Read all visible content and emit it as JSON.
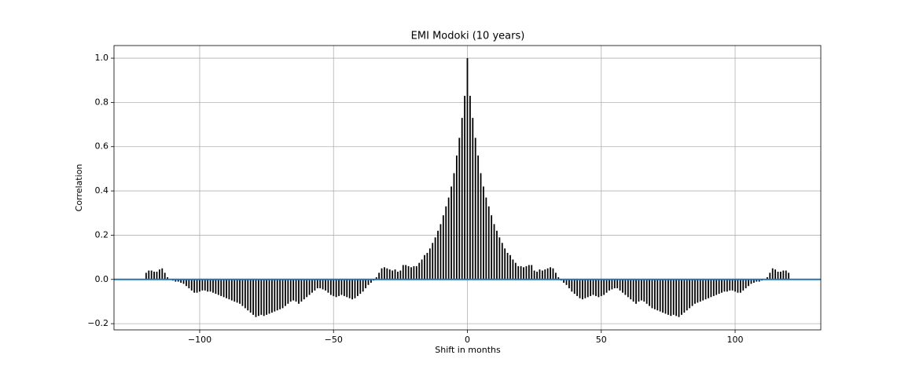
{
  "chart_data": {
    "type": "stem",
    "title": "EMI Modoki (10 years)",
    "x_label": "Shift in months",
    "y_label": "Correlation",
    "color": "#000000",
    "baseline_color": "#1f77b4",
    "grid": true,
    "xlim": [
      -132,
      132
    ],
    "ylim": [
      -0.228,
      1.057
    ],
    "xticks": [
      {
        "value": -100,
        "label": "−100"
      },
      {
        "value": -50,
        "label": "−50"
      },
      0,
      50,
      100
    ],
    "yticks": [
      {
        "value": -0.2,
        "label": "−0.2"
      },
      {
        "value": 0,
        "label": "0.0"
      },
      0.2,
      0.4,
      0.6,
      0.8,
      {
        "value": 1.0,
        "label": "1.0"
      }
    ],
    "x": [
      -120,
      -119,
      -118,
      -117,
      -116,
      -115,
      -114,
      -113,
      -112,
      -111,
      -110,
      -109,
      -108,
      -107,
      -106,
      -105,
      -104,
      -103,
      -102,
      -101,
      -100,
      -99,
      -98,
      -97,
      -96,
      -95,
      -94,
      -93,
      -92,
      -91,
      -90,
      -89,
      -88,
      -87,
      -86,
      -85,
      -84,
      -83,
      -82,
      -81,
      -80,
      -79,
      -78,
      -77,
      -76,
      -75,
      -74,
      -73,
      -72,
      -71,
      -70,
      -69,
      -68,
      -67,
      -66,
      -65,
      -64,
      -63,
      -62,
      -61,
      -60,
      -59,
      -58,
      -57,
      -56,
      -55,
      -54,
      -53,
      -52,
      -51,
      -50,
      -49,
      -48,
      -47,
      -46,
      -45,
      -44,
      -43,
      -42,
      -41,
      -40,
      -39,
      -38,
      -37,
      -36,
      -35,
      -34,
      -33,
      -32,
      -31,
      -30,
      -29,
      -28,
      -27,
      -26,
      -25,
      -24,
      -23,
      -22,
      -21,
      -20,
      -19,
      -18,
      -17,
      -16,
      -15,
      -14,
      -13,
      -12,
      -11,
      -10,
      -9,
      -8,
      -7,
      -6,
      -5,
      -4,
      -3,
      -2,
      -1,
      0,
      1,
      2,
      3,
      4,
      5,
      6,
      7,
      8,
      9,
      10,
      11,
      12,
      13,
      14,
      15,
      16,
      17,
      18,
      19,
      20,
      21,
      22,
      23,
      24,
      25,
      26,
      27,
      28,
      29,
      30,
      31,
      32,
      33,
      34,
      35,
      36,
      37,
      38,
      39,
      40,
      41,
      42,
      43,
      44,
      45,
      46,
      47,
      48,
      49,
      50,
      51,
      52,
      53,
      54,
      55,
      56,
      57,
      58,
      59,
      60,
      61,
      62,
      63,
      64,
      65,
      66,
      67,
      68,
      69,
      70,
      71,
      72,
      73,
      74,
      75,
      76,
      77,
      78,
      79,
      80,
      81,
      82,
      83,
      84,
      85,
      86,
      87,
      88,
      89,
      90,
      91,
      92,
      93,
      94,
      95,
      96,
      97,
      98,
      99,
      100,
      101,
      102,
      103,
      104,
      105,
      106,
      107,
      108,
      109,
      110,
      111,
      112,
      113,
      114,
      115,
      116,
      117,
      118,
      119,
      120
    ],
    "values": [
      0.03,
      0.04,
      0.04,
      0.035,
      0.035,
      0.045,
      0.05,
      0.03,
      0.01,
      0.0,
      -0.005,
      -0.01,
      -0.01,
      -0.015,
      -0.02,
      -0.03,
      -0.04,
      -0.05,
      -0.06,
      -0.06,
      -0.055,
      -0.05,
      -0.05,
      -0.055,
      -0.055,
      -0.06,
      -0.065,
      -0.07,
      -0.075,
      -0.08,
      -0.085,
      -0.09,
      -0.095,
      -0.1,
      -0.105,
      -0.11,
      -0.12,
      -0.13,
      -0.14,
      -0.15,
      -0.16,
      -0.17,
      -0.165,
      -0.16,
      -0.165,
      -0.16,
      -0.155,
      -0.15,
      -0.145,
      -0.14,
      -0.135,
      -0.13,
      -0.12,
      -0.11,
      -0.1,
      -0.095,
      -0.1,
      -0.11,
      -0.1,
      -0.09,
      -0.08,
      -0.07,
      -0.06,
      -0.05,
      -0.04,
      -0.04,
      -0.045,
      -0.05,
      -0.06,
      -0.07,
      -0.075,
      -0.08,
      -0.075,
      -0.07,
      -0.075,
      -0.08,
      -0.085,
      -0.09,
      -0.085,
      -0.075,
      -0.065,
      -0.055,
      -0.04,
      -0.025,
      -0.015,
      -0.005,
      0.01,
      0.03,
      0.05,
      0.055,
      0.05,
      0.045,
      0.04,
      0.045,
      0.035,
      0.04,
      0.065,
      0.065,
      0.06,
      0.055,
      0.06,
      0.06,
      0.075,
      0.09,
      0.11,
      0.12,
      0.14,
      0.165,
      0.19,
      0.22,
      0.25,
      0.29,
      0.33,
      0.37,
      0.42,
      0.48,
      0.56,
      0.64,
      0.73,
      0.83,
      1.0,
      0.83,
      0.73,
      0.64,
      0.56,
      0.48,
      0.42,
      0.37,
      0.33,
      0.29,
      0.25,
      0.22,
      0.19,
      0.165,
      0.14,
      0.12,
      0.11,
      0.09,
      0.075,
      0.06,
      0.06,
      0.055,
      0.06,
      0.065,
      0.065,
      0.04,
      0.035,
      0.045,
      0.04,
      0.045,
      0.05,
      0.055,
      0.05,
      0.03,
      0.01,
      -0.005,
      -0.015,
      -0.025,
      -0.04,
      -0.055,
      -0.065,
      -0.075,
      -0.085,
      -0.09,
      -0.085,
      -0.08,
      -0.075,
      -0.07,
      -0.075,
      -0.08,
      -0.075,
      -0.07,
      -0.06,
      -0.05,
      -0.045,
      -0.04,
      -0.04,
      -0.05,
      -0.06,
      -0.07,
      -0.08,
      -0.09,
      -0.1,
      -0.11,
      -0.1,
      -0.095,
      -0.1,
      -0.11,
      -0.12,
      -0.13,
      -0.135,
      -0.14,
      -0.145,
      -0.15,
      -0.155,
      -0.16,
      -0.165,
      -0.16,
      -0.165,
      -0.17,
      -0.16,
      -0.15,
      -0.14,
      -0.13,
      -0.12,
      -0.11,
      -0.105,
      -0.1,
      -0.095,
      -0.09,
      -0.085,
      -0.08,
      -0.075,
      -0.07,
      -0.065,
      -0.06,
      -0.055,
      -0.055,
      -0.05,
      -0.05,
      -0.055,
      -0.06,
      -0.06,
      -0.05,
      -0.04,
      -0.03,
      -0.02,
      -0.015,
      -0.01,
      -0.01,
      -0.005,
      0.0,
      0.01,
      0.03,
      0.05,
      0.045,
      0.035,
      0.035,
      0.04,
      0.04,
      0.03
    ]
  }
}
